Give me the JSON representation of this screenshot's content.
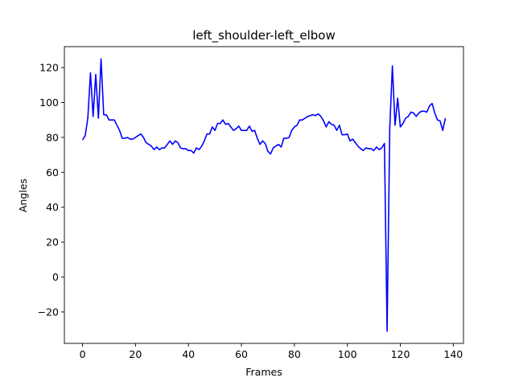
{
  "chart_data": {
    "type": "line",
    "title": "left_shoulder-left_elbow",
    "xlabel": "Frames",
    "ylabel": "Angles",
    "xlim": [
      -6.85,
      143.85
    ],
    "ylim": [
      -38,
      132
    ],
    "xticks": [
      0,
      20,
      40,
      60,
      80,
      100,
      120,
      140
    ],
    "yticks": [
      -20,
      0,
      20,
      40,
      60,
      80,
      100,
      120
    ],
    "grid": false,
    "legend": "none",
    "series": [
      {
        "color": "#0000ff",
        "x": [
          0,
          1,
          2,
          3,
          4,
          5,
          6,
          7,
          8,
          9,
          10,
          11,
          12,
          13,
          14,
          15,
          16,
          17,
          18,
          19,
          20,
          21,
          22,
          23,
          24,
          25,
          26,
          27,
          28,
          29,
          30,
          31,
          32,
          33,
          34,
          35,
          36,
          37,
          38,
          39,
          40,
          41,
          42,
          43,
          44,
          45,
          46,
          47,
          48,
          49,
          50,
          51,
          52,
          53,
          54,
          55,
          56,
          57,
          58,
          59,
          60,
          61,
          62,
          63,
          64,
          65,
          66,
          67,
          68,
          69,
          70,
          71,
          72,
          73,
          74,
          75,
          76,
          77,
          78,
          79,
          80,
          81,
          82,
          83,
          84,
          85,
          86,
          87,
          88,
          89,
          90,
          91,
          92,
          93,
          94,
          95,
          96,
          97,
          98,
          99,
          100,
          101,
          102,
          103,
          104,
          105,
          106,
          107,
          108,
          109,
          110,
          111,
          112,
          113,
          114,
          115,
          116,
          117,
          118,
          119,
          120,
          121,
          122,
          123,
          124,
          125,
          126,
          127,
          128,
          129,
          130,
          131,
          132,
          133,
          134,
          135,
          136,
          137
        ],
        "y": [
          78.5,
          81,
          91,
          117,
          92,
          116,
          91,
          125,
          93,
          93,
          90,
          90,
          90,
          87,
          84,
          79.5,
          79.5,
          80,
          79,
          79,
          80,
          81,
          82,
          80,
          77,
          76,
          75,
          73,
          74.5,
          73,
          74,
          74,
          76,
          78,
          76,
          78,
          77,
          74,
          73.5,
          73.5,
          72.5,
          72.5,
          71,
          74,
          73,
          75,
          78,
          82,
          82,
          86,
          84,
          88,
          88,
          90,
          87.5,
          88,
          86,
          84,
          85,
          86.5,
          84,
          84,
          84,
          86.5,
          83.5,
          84,
          79.5,
          76,
          78,
          76.5,
          72,
          70.5,
          74,
          75,
          76,
          74.5,
          79.5,
          79.5,
          80,
          84,
          86,
          87,
          90,
          90,
          91,
          92,
          92.5,
          93,
          92.5,
          93.5,
          92,
          89.5,
          86,
          89,
          87.5,
          87,
          84,
          87,
          81.5,
          81.5,
          82,
          78,
          79,
          77,
          75,
          73.5,
          72.5,
          74,
          73.5,
          73.5,
          72.5,
          74.5,
          73,
          74,
          76.5,
          -31,
          85,
          121,
          87,
          102.5,
          86,
          88,
          91,
          92,
          94.5,
          94,
          92,
          94,
          95,
          95,
          94.5,
          98,
          99.5,
          94,
          90,
          89.5,
          84,
          91
        ]
      }
    ]
  }
}
